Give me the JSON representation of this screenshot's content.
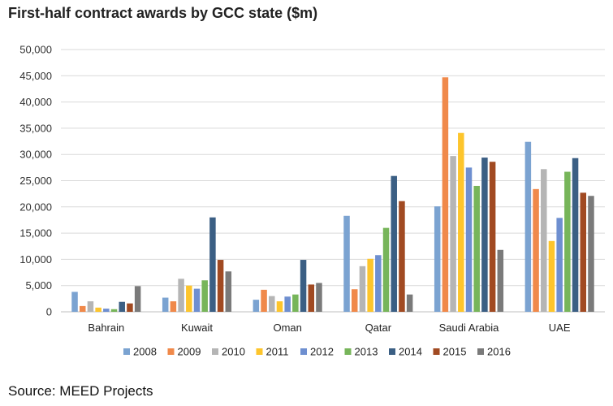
{
  "title": "First-half contract awards by GCC state ($m)",
  "source": "Source: MEED Projects",
  "chart_data": {
    "type": "bar",
    "title": "First-half contract awards by GCC state ($m)",
    "categories": [
      "Bahrain",
      "Kuwait",
      "Oman",
      "Qatar",
      "Saudi Arabia",
      "UAE"
    ],
    "ylim": [
      0,
      50000
    ],
    "yticks": [
      "0",
      "5,000",
      "10,000",
      "15,000",
      "20,000",
      "25,000",
      "30,000",
      "35,000",
      "40,000",
      "45,000",
      "50,000"
    ],
    "grid": true,
    "legend_position": "bottom",
    "series": [
      {
        "name": "2008",
        "color": "#7ba3d1",
        "values": [
          3800,
          2700,
          2300,
          18300,
          20100,
          32400
        ]
      },
      {
        "name": "2009",
        "color": "#f0894a",
        "values": [
          1100,
          2000,
          4200,
          4300,
          44700,
          23400
        ]
      },
      {
        "name": "2010",
        "color": "#b5b5b5",
        "values": [
          2000,
          6300,
          3000,
          8700,
          29700,
          27200
        ]
      },
      {
        "name": "2011",
        "color": "#fdc52c",
        "values": [
          800,
          5000,
          2000,
          10100,
          34100,
          13500
        ]
      },
      {
        "name": "2012",
        "color": "#6e8fd0",
        "values": [
          600,
          4400,
          2900,
          10800,
          27500,
          17900
        ]
      },
      {
        "name": "2013",
        "color": "#77b55a",
        "values": [
          500,
          6000,
          3300,
          16000,
          24000,
          26700
        ]
      },
      {
        "name": "2014",
        "color": "#3b5f84",
        "values": [
          1900,
          18000,
          9900,
          25900,
          29400,
          29300
        ]
      },
      {
        "name": "2015",
        "color": "#a14a22",
        "values": [
          1600,
          9900,
          5200,
          21100,
          28600,
          22700
        ]
      },
      {
        "name": "2016",
        "color": "#7a7a7a",
        "values": [
          4900,
          7700,
          5500,
          3300,
          11800,
          22100
        ]
      }
    ]
  }
}
